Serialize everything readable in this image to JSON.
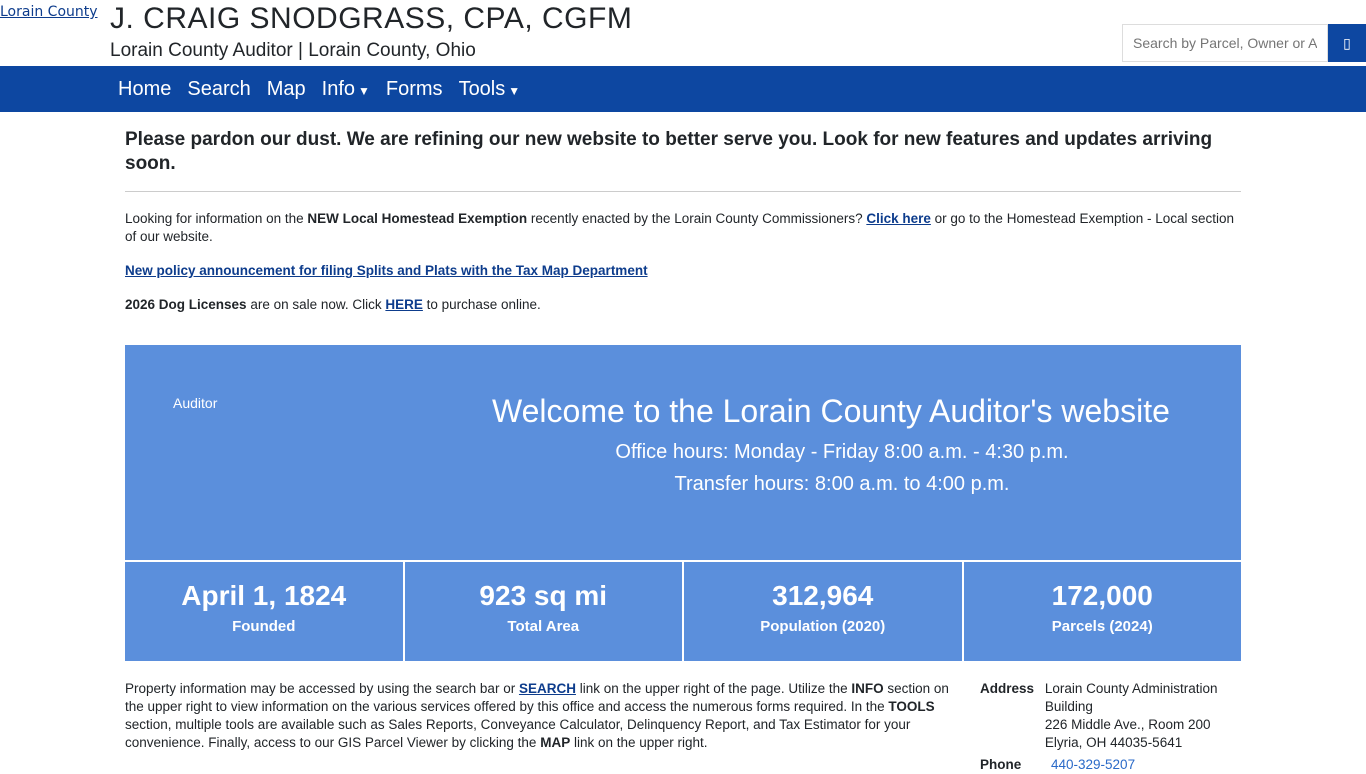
{
  "header": {
    "logo_alt": "Lorain County",
    "title": "J. CRAIG SNODGRASS, CPA, CGFM",
    "subtitle": "Lorain County Auditor | Lorain County, Ohio",
    "search_placeholder": "Search by Parcel, Owner or Address",
    "search_icon": "search-icon"
  },
  "nav": [
    "Home",
    "Search",
    "Map",
    "Info",
    "Forms",
    "Tools"
  ],
  "notice": "Please pardon our dust. We are refining our new website to better serve you. Look for new features and updates arriving soon.",
  "homestead": {
    "t1": "Looking for information on the ",
    "b": "NEW Local Homestead Exemption",
    "t2": " recently enacted by the Lorain County Commissioners? ",
    "link": "Click here",
    "t3": " or go to the Homestead Exemption - Local section of our website."
  },
  "policy_link": "New policy announcement for filing Splits and Plats with the Tax Map Department",
  "dog": {
    "b": "2026 Dog Licenses",
    "t1": " are on sale now. Click ",
    "link": "HERE",
    "t2": " to purchase online."
  },
  "hero": {
    "img_alt": "Auditor",
    "title": "Welcome to the Lorain County Auditor's website",
    "office": "Office hours: Monday - Friday 8:00 a.m. - 4:30 p.m.",
    "transfer": "Transfer hours: 8:00 a.m. to 4:00 p.m."
  },
  "stats": [
    {
      "v": "April 1, 1824",
      "l": "Founded"
    },
    {
      "v": "923 sq mi",
      "l": "Total Area"
    },
    {
      "v": "312,964",
      "l": "Population (2020)"
    },
    {
      "v": "172,000",
      "l": "Parcels (2024)"
    }
  ],
  "info": {
    "t1": "Property information may be accessed by using the search bar or ",
    "link": "SEARCH",
    "t2": " link on the upper right of the page. Utilize the ",
    "b1": "INFO",
    "t3": " section on the upper right to view information on the various services offered by this office and access the numerous forms required. In the ",
    "b2": "TOOLS",
    "t4": " section, multiple tools are available such as Sales Reports, Conveyance Calculator, Delinquency Report, and Tax Estimator for your convenience. Finally, access to our GIS Parcel Viewer by clicking the ",
    "b3": "MAP",
    "t5": " link on the upper right."
  },
  "contact": {
    "address_label": "Address",
    "address": [
      "Lorain County Administration Building",
      "226 Middle Ave., Room 200",
      "Elyria, OH 44035-5641"
    ],
    "phone_label": "Phone",
    "phone": "440-329-5207"
  }
}
